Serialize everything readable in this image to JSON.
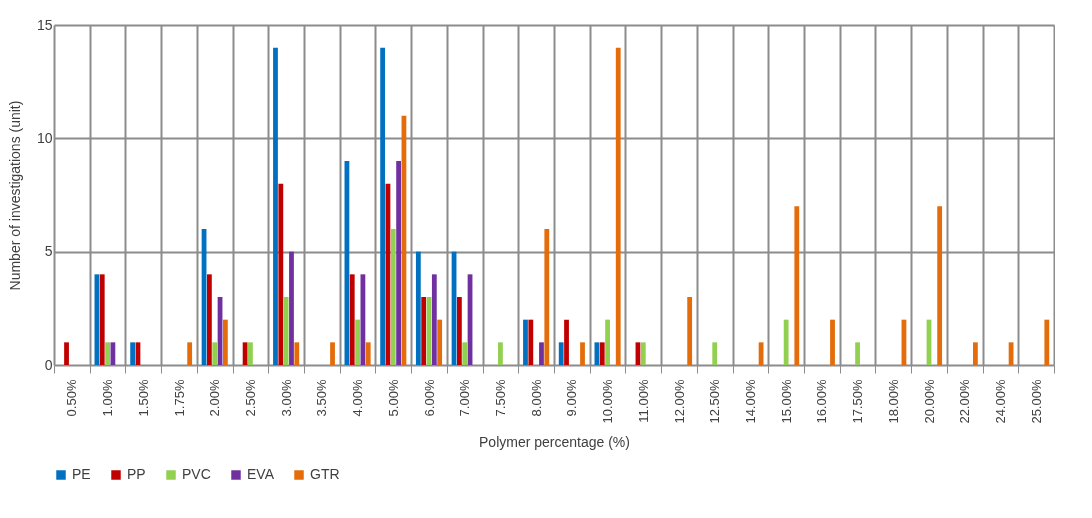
{
  "chart_data": {
    "type": "bar",
    "xlabel": "Polymer percentage (%)",
    "ylabel": "Number of investigations (unit)",
    "categories": [
      "0.50%",
      "1.00%",
      "1.50%",
      "1.75%",
      "2.00%",
      "2.50%",
      "3.00%",
      "3.50%",
      "4.00%",
      "5.00%",
      "6.00%",
      "7.00%",
      "7.50%",
      "8.00%",
      "9.00%",
      "10.00%",
      "11.00%",
      "12.00%",
      "12.50%",
      "14.00%",
      "15.00%",
      "16.00%",
      "17.50%",
      "18.00%",
      "20.00%",
      "22.00%",
      "24.00%",
      "25.00%"
    ],
    "series": [
      {
        "name": "PE",
        "color": "#0070c0",
        "values": [
          null,
          4,
          1,
          null,
          6,
          null,
          14,
          null,
          9,
          14,
          5,
          5,
          null,
          2,
          1,
          1,
          null,
          null,
          null,
          null,
          null,
          null,
          null,
          null,
          null,
          null,
          null,
          null
        ]
      },
      {
        "name": "PP",
        "color": "#c00000",
        "values": [
          1,
          4,
          1,
          null,
          4,
          1,
          8,
          null,
          4,
          8,
          3,
          3,
          null,
          2,
          2,
          1,
          1,
          null,
          null,
          null,
          null,
          null,
          null,
          null,
          null,
          null,
          null,
          null
        ]
      },
      {
        "name": "PVC",
        "color": "#92d050",
        "values": [
          null,
          1,
          null,
          null,
          1,
          1,
          3,
          null,
          2,
          6,
          3,
          1,
          1,
          null,
          null,
          2,
          1,
          null,
          1,
          null,
          2,
          null,
          1,
          null,
          2,
          null,
          null,
          null
        ]
      },
      {
        "name": "EVA",
        "color": "#7030a0",
        "values": [
          null,
          1,
          null,
          null,
          3,
          null,
          5,
          null,
          4,
          9,
          4,
          4,
          null,
          1,
          null,
          null,
          null,
          null,
          null,
          null,
          null,
          null,
          null,
          null,
          null,
          null,
          null,
          null
        ]
      },
      {
        "name": "GTR",
        "color": "#e46c0a",
        "values": [
          null,
          null,
          null,
          1,
          2,
          null,
          1,
          1,
          1,
          11,
          2,
          null,
          null,
          6,
          1,
          14,
          null,
          3,
          null,
          1,
          7,
          2,
          null,
          2,
          7,
          1,
          1,
          2
        ]
      }
    ],
    "ylim": [
      0,
      15
    ],
    "yticks": [
      0,
      5,
      10,
      15
    ],
    "grid": true,
    "legend": "bottom"
  }
}
